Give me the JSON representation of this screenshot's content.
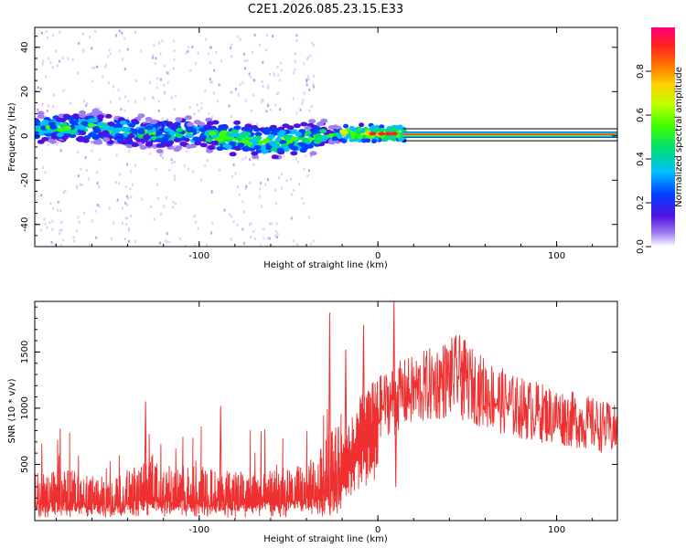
{
  "title": "C2E1.2026.085.23.15.E33",
  "chart_data": [
    {
      "type": "heatmap",
      "name": "spectrogram",
      "xlabel": "Height of straight line (km)",
      "ylabel": "Frequency (Hz)",
      "xlim": [
        -192,
        134
      ],
      "ylim": [
        -50,
        49
      ],
      "xticks": [
        -100,
        0,
        100
      ],
      "yticks": [
        -40,
        -20,
        0,
        20,
        40
      ],
      "xtick_labels": [
        "-100",
        "0",
        "100"
      ],
      "ytick_labels": [
        "-40",
        "-20",
        "0",
        "20",
        "40"
      ],
      "ridge": [
        {
          "x": -190,
          "y": 3
        },
        {
          "x": -160,
          "y": 4
        },
        {
          "x": -130,
          "y": 1
        },
        {
          "x": -100,
          "y": 1
        },
        {
          "x": -80,
          "y": -1
        },
        {
          "x": -60,
          "y": -3
        },
        {
          "x": -40,
          "y": -1
        },
        {
          "x": -30,
          "y": 0
        },
        {
          "x": -20,
          "y": 1
        },
        {
          "x": -10,
          "y": 1
        },
        {
          "x": 0,
          "y": 1
        },
        {
          "x": 12,
          "y": 1
        },
        {
          "x": 134,
          "y": 0.5
        }
      ],
      "noisy_columns": [
        -183,
        -163,
        -145,
        -120,
        -100,
        -77,
        -60,
        -43
      ],
      "colorbar": {
        "label": "Normalized spectral amplitude",
        "range": [
          0,
          1
        ],
        "ticks": [
          0.0,
          0.2,
          0.4,
          0.6,
          0.8
        ],
        "tick_labels": [
          "0.0",
          "0.2",
          "0.4",
          "0.6",
          "0.8"
        ],
        "colors": [
          "#ffffff",
          "#a080f0",
          "#5010e0",
          "#0040ff",
          "#00c0ff",
          "#00e070",
          "#40ff00",
          "#c0ff00",
          "#ffd000",
          "#ff7000",
          "#ff2020",
          "#ff0080"
        ]
      }
    },
    {
      "type": "line",
      "name": "snr",
      "xlabel": "Height of straight line (km)",
      "ylabel": "SNR (10 * v/v)",
      "xlim": [
        -192,
        134
      ],
      "ylim": [
        0,
        1950
      ],
      "xticks": [
        -100,
        0,
        100
      ],
      "yticks": [
        500,
        1000,
        1500
      ],
      "xtick_labels": [
        "-100",
        "0",
        "100"
      ],
      "ytick_labels": [
        "500",
        "1000",
        "1500"
      ],
      "color": "#ee3030",
      "envelope": [
        {
          "x": -192,
          "y": 230
        },
        {
          "x": -170,
          "y": 240
        },
        {
          "x": -150,
          "y": 200
        },
        {
          "x": -130,
          "y": 280
        },
        {
          "x": -110,
          "y": 260
        },
        {
          "x": -90,
          "y": 250
        },
        {
          "x": -70,
          "y": 230
        },
        {
          "x": -50,
          "y": 240
        },
        {
          "x": -35,
          "y": 300
        },
        {
          "x": -20,
          "y": 520
        },
        {
          "x": -10,
          "y": 880
        },
        {
          "x": 0,
          "y": 1000
        },
        {
          "x": 10,
          "y": 1100
        },
        {
          "x": 25,
          "y": 1180
        },
        {
          "x": 45,
          "y": 1300
        },
        {
          "x": 55,
          "y": 1180
        },
        {
          "x": 75,
          "y": 1020
        },
        {
          "x": 100,
          "y": 930
        },
        {
          "x": 120,
          "y": 860
        },
        {
          "x": 134,
          "y": 800
        }
      ],
      "spikes": [
        {
          "x": -130,
          "y": 1060
        },
        {
          "x": -88,
          "y": 1020
        },
        {
          "x": -27,
          "y": 1850
        },
        {
          "x": -18,
          "y": 1520
        },
        {
          "x": -8,
          "y": 1740
        },
        {
          "x": 9,
          "y": 1950
        },
        {
          "x": 47,
          "y": 1510
        }
      ],
      "dips": [
        {
          "x": 10,
          "y": 300
        }
      ]
    }
  ]
}
